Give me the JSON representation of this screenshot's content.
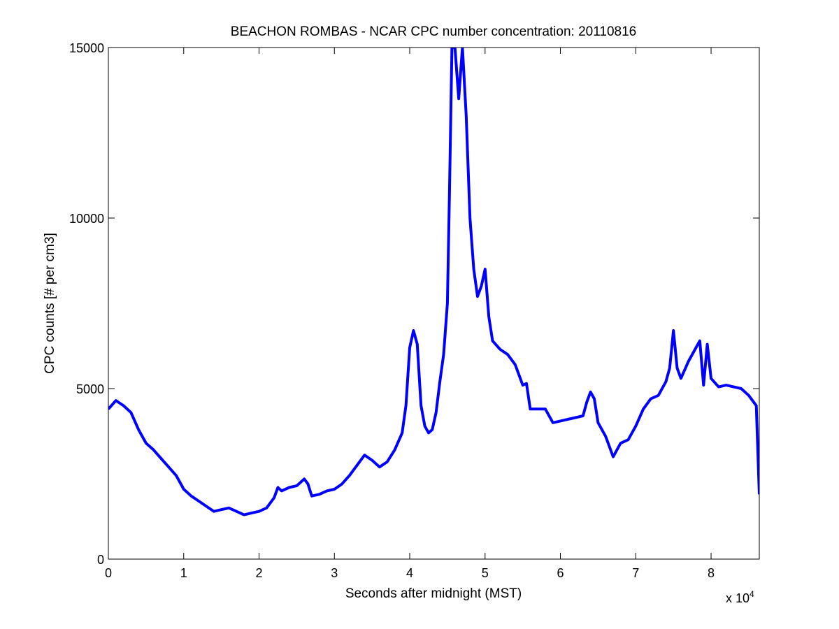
{
  "chart_data": {
    "type": "line",
    "title": "BEACHON ROMBAS - NCAR CPC number concentration: 20110816",
    "xlabel": "Seconds after midnight (MST)",
    "ylabel": "CPC counts [# per cm3]",
    "x_multiplier_label": "x 10",
    "x_multiplier_exponent": "4",
    "xlim": [
      0,
      86400
    ],
    "ylim": [
      0,
      15000
    ],
    "xticks": [
      0,
      10000,
      20000,
      30000,
      40000,
      50000,
      60000,
      70000,
      80000
    ],
    "xtick_labels": [
      "0",
      "1",
      "2",
      "3",
      "4",
      "5",
      "6",
      "7",
      "8"
    ],
    "yticks": [
      0,
      5000,
      10000,
      15000
    ],
    "ytick_labels": [
      "0",
      "5000",
      "10000",
      "15000"
    ],
    "grid": false,
    "line_color": "#0000ff",
    "series": [
      {
        "x": [
          0,
          1000,
          2000,
          3000,
          4000,
          5000,
          6000,
          7000,
          8000,
          9000,
          10000,
          11000,
          12000,
          13000,
          14000,
          15000,
          16000,
          17000,
          18000,
          19000,
          20000,
          21000,
          22000,
          22500,
          23000,
          24000,
          25000,
          26000,
          26500,
          27000,
          28000,
          29000,
          30000,
          31000,
          32000,
          33000,
          34000,
          35000,
          36000,
          37000,
          38000,
          39000,
          39500,
          40000,
          40500,
          41000,
          41500,
          42000,
          42500,
          43000,
          43500,
          44000,
          44500,
          45000,
          45300,
          45600,
          46000,
          46500,
          47000,
          47500,
          48000,
          48500,
          49000,
          49500,
          50000,
          50500,
          51000,
          52000,
          53000,
          54000,
          55000,
          55500,
          56000,
          57000,
          58000,
          59000,
          60000,
          61000,
          62000,
          63000,
          63500,
          64000,
          64500,
          65000,
          66000,
          67000,
          68000,
          69000,
          70000,
          71000,
          72000,
          73000,
          74000,
          74500,
          75000,
          75500,
          76000,
          77000,
          78000,
          78500,
          79000,
          79500,
          80000,
          81000,
          82000,
          83000,
          84000,
          85000,
          86000,
          86400
        ],
        "y": [
          4400,
          4650,
          4500,
          4300,
          3800,
          3400,
          3200,
          2950,
          2700,
          2450,
          2050,
          1850,
          1700,
          1550,
          1400,
          1450,
          1500,
          1400,
          1300,
          1350,
          1400,
          1500,
          1800,
          2100,
          2000,
          2100,
          2150,
          2350,
          2200,
          1850,
          1900,
          2000,
          2050,
          2200,
          2450,
          2750,
          3050,
          2900,
          2700,
          2850,
          3200,
          3700,
          4500,
          6200,
          6700,
          6300,
          4500,
          3900,
          3700,
          3800,
          4300,
          5200,
          6000,
          7500,
          11000,
          15000,
          15000,
          13500,
          15000,
          13000,
          10000,
          8500,
          7700,
          8000,
          8500,
          7100,
          6400,
          6150,
          6000,
          5700,
          5100,
          5150,
          4400,
          4400,
          4400,
          4000,
          4050,
          4100,
          4150,
          4200,
          4600,
          4900,
          4700,
          4000,
          3600,
          3000,
          3400,
          3500,
          3900,
          4400,
          4700,
          4800,
          5200,
          5600,
          6700,
          5600,
          5300,
          5800,
          6200,
          6400,
          5100,
          6300,
          5300,
          5050,
          5100,
          5050,
          5000,
          4800,
          4500,
          1900
        ]
      }
    ]
  }
}
